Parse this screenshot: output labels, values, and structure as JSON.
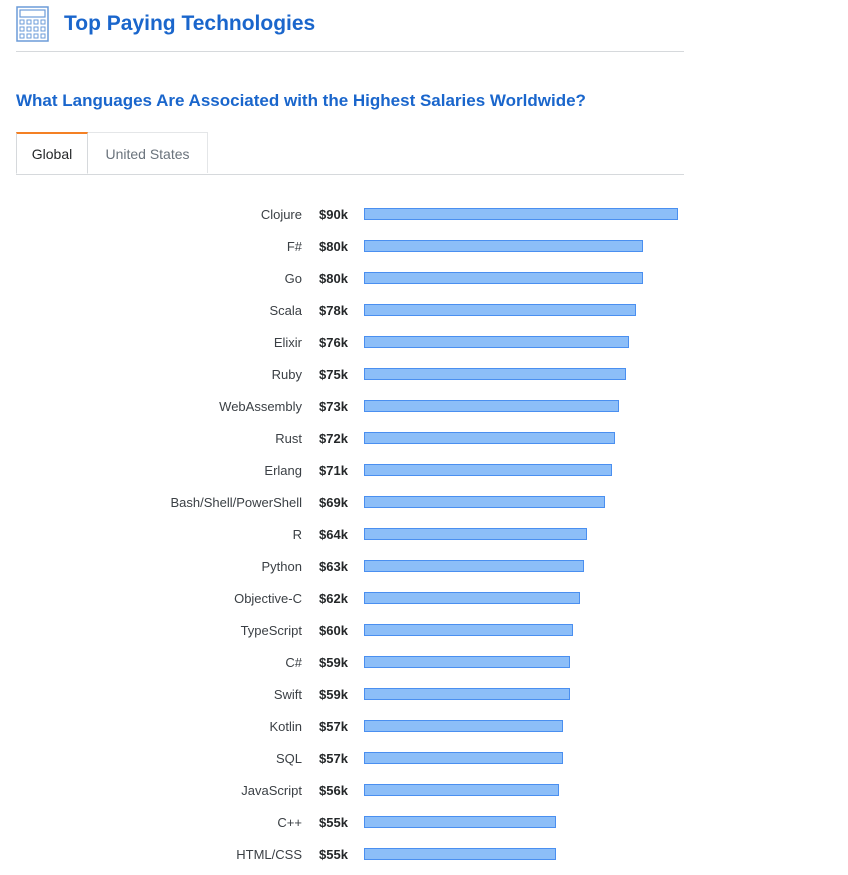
{
  "header": {
    "title": "Top Paying Technologies",
    "icon": "calculator-icon"
  },
  "subtitle": "What Languages Are Associated with the Highest Salaries Worldwide?",
  "tabs": [
    {
      "label": "Global",
      "active": true
    },
    {
      "label": "United States",
      "active": false
    }
  ],
  "colors": {
    "accent": "#1a66cc",
    "tab_active": "#f48024",
    "bar_fill": "#8cbef8",
    "bar_border": "#4a8ff0"
  },
  "chart_data": {
    "type": "bar",
    "orientation": "horizontal",
    "unit": "$k",
    "categories": [
      "Clojure",
      "F#",
      "Go",
      "Scala",
      "Elixir",
      "Ruby",
      "WebAssembly",
      "Rust",
      "Erlang",
      "Bash/Shell/PowerShell",
      "R",
      "Python",
      "Objective-C",
      "TypeScript",
      "C#",
      "Swift",
      "Kotlin",
      "SQL",
      "JavaScript",
      "C++",
      "HTML/CSS"
    ],
    "values": [
      90,
      80,
      80,
      78,
      76,
      75,
      73,
      72,
      71,
      69,
      64,
      63,
      62,
      60,
      59,
      59,
      57,
      57,
      56,
      55,
      55
    ],
    "value_labels": [
      "$90k",
      "$80k",
      "$80k",
      "$78k",
      "$76k",
      "$75k",
      "$73k",
      "$72k",
      "$71k",
      "$69k",
      "$64k",
      "$63k",
      "$62k",
      "$60k",
      "$59k",
      "$59k",
      "$57k",
      "$57k",
      "$56k",
      "$55k",
      "$55k"
    ],
    "xlim": [
      0,
      90
    ],
    "grid": false,
    "legend": "none"
  }
}
